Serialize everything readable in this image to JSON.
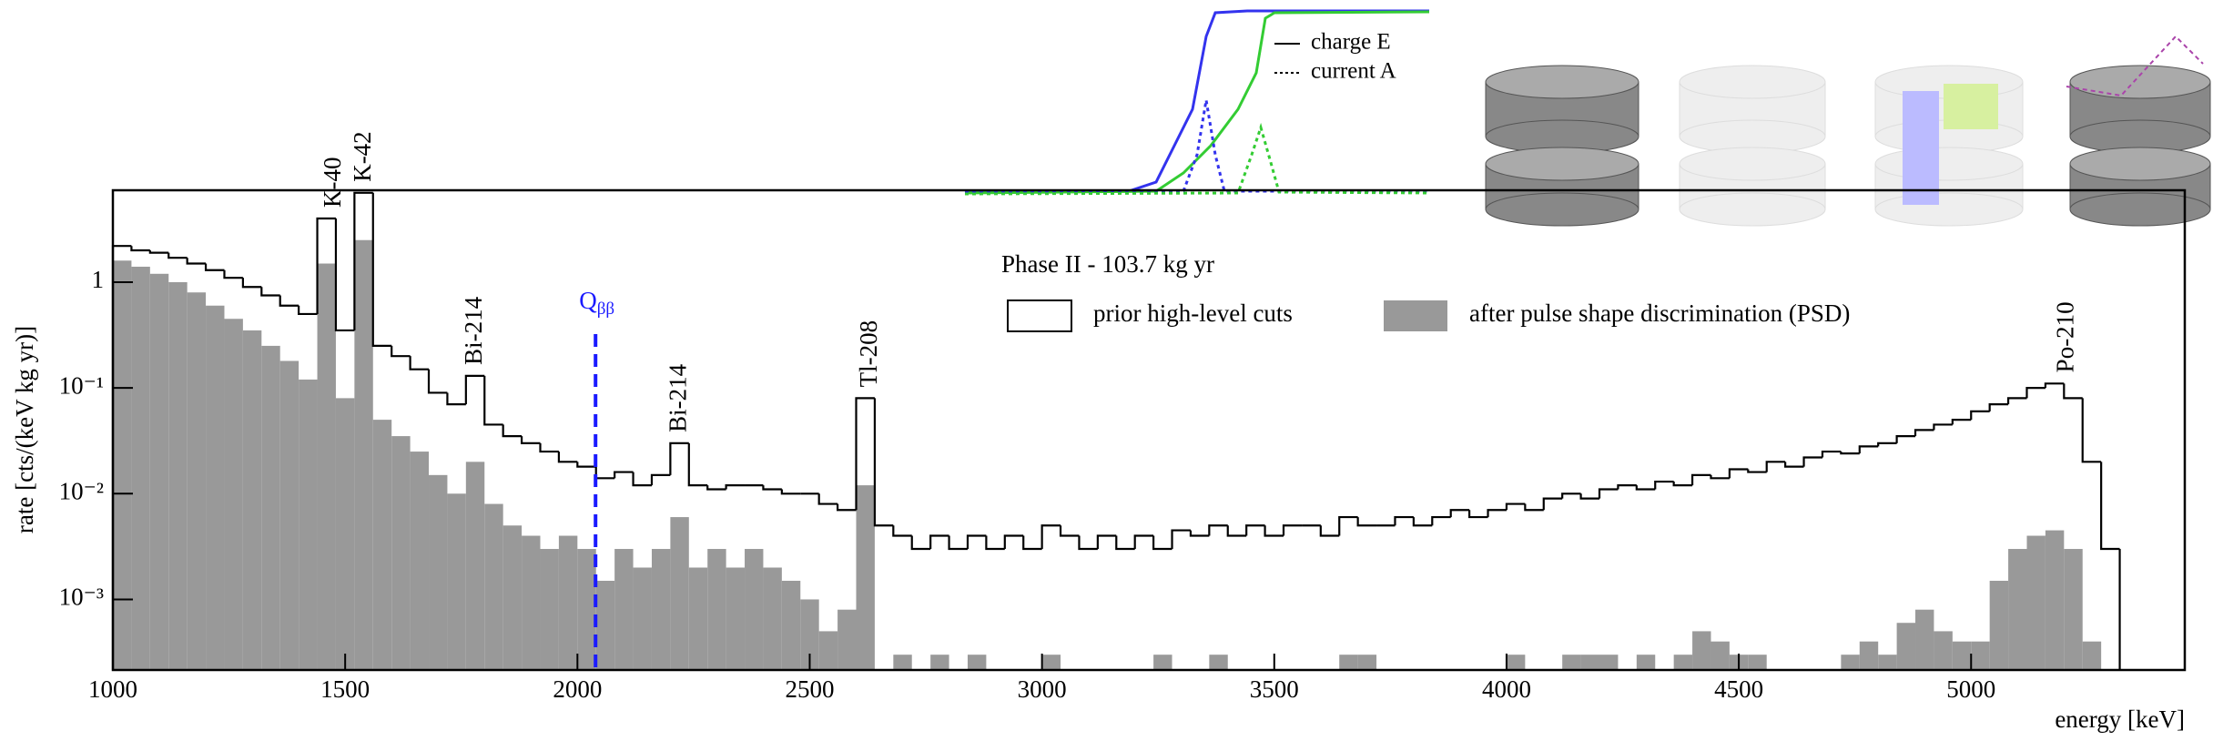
{
  "chart_data": {
    "type": "histogram",
    "xlabel": "energy [keV]",
    "ylabel": "rate [cts/(keV kg yr)]",
    "log_y": true,
    "xlim": [
      1000,
      5460
    ],
    "ylim": [
      0.000215,
      7.4
    ],
    "xticks": [
      1000,
      1500,
      2000,
      2500,
      3000,
      3500,
      4000,
      4500,
      5000
    ],
    "yticks": [
      {
        "value": 0.001,
        "label": "10⁻³"
      },
      {
        "value": 0.01,
        "label": "10⁻²"
      },
      {
        "value": 0.1,
        "label": "10⁻¹"
      },
      {
        "value": 1,
        "label": "1"
      }
    ],
    "legend_title": "Phase II - 103.7 kg yr",
    "bins": [
      1000,
      1040,
      1080,
      1120,
      1160,
      1200,
      1240,
      1280,
      1320,
      1360,
      1400,
      1440,
      1480,
      1520,
      1560,
      1600,
      1640,
      1680,
      1720,
      1760,
      1800,
      1840,
      1880,
      1920,
      1960,
      2000,
      2040,
      2080,
      2120,
      2160,
      2200,
      2240,
      2280,
      2320,
      2360,
      2400,
      2440,
      2480,
      2520,
      2560,
      2600,
      2640,
      2680,
      2720,
      2760,
      2800,
      2840,
      2880,
      2920,
      2960,
      3000,
      3040,
      3080,
      3120,
      3160,
      3200,
      3240,
      3280,
      3320,
      3360,
      3400,
      3440,
      3480,
      3520,
      3560,
      3600,
      3640,
      3680,
      3720,
      3760,
      3800,
      3840,
      3880,
      3920,
      3960,
      4000,
      4040,
      4080,
      4120,
      4160,
      4200,
      4240,
      4280,
      4320,
      4360,
      4400,
      4440,
      4480,
      4520,
      4560,
      4600,
      4640,
      4680,
      4720,
      4760,
      4800,
      4840,
      4880,
      4920,
      4960,
      5000,
      5040,
      5080,
      5120,
      5160,
      5200,
      5240,
      5280,
      5320
    ],
    "series": [
      {
        "name": "after pulse shape discrimination (PSD)",
        "color": "#999999",
        "style": "filled",
        "values": [
          1.6,
          1.4,
          1.2,
          1.0,
          0.8,
          0.6,
          0.45,
          0.35,
          0.25,
          0.18,
          0.12,
          1.5,
          0.08,
          2.5,
          0.05,
          0.035,
          0.025,
          0.015,
          0.01,
          0.02,
          0.008,
          0.005,
          0.004,
          0.003,
          0.004,
          0.003,
          0.0015,
          0.003,
          0.002,
          0.003,
          0.006,
          0.002,
          0.003,
          0.002,
          0.003,
          0.002,
          0.0015,
          0.001,
          0.0005,
          0.0008,
          0.012,
          0,
          0.0003,
          0,
          0.0003,
          0,
          0.0003,
          0,
          0,
          0,
          0.0003,
          0,
          0,
          0,
          0,
          0,
          0.0003,
          0,
          0,
          0.0003,
          0,
          0,
          0,
          0,
          0,
          0,
          0.0003,
          0.0003,
          0,
          0,
          0,
          0,
          0,
          0,
          0,
          0.0003,
          0,
          0,
          0.0003,
          0.0003,
          0.0003,
          0,
          0.0003,
          0,
          0.0003,
          0.0005,
          0.0004,
          0.0003,
          0.0003,
          0,
          0,
          0,
          0,
          0.0003,
          0.0004,
          0.0003,
          0.0006,
          0.0008,
          0.0005,
          0.0004,
          0.0004,
          0.0015,
          0.003,
          0.004,
          0.0045,
          0.003,
          0.0004,
          0
        ]
      },
      {
        "name": "prior high-level cuts",
        "color": "#000000",
        "style": "step",
        "values": [
          2.2,
          2.0,
          1.9,
          1.7,
          1.5,
          1.3,
          1.1,
          0.9,
          0.75,
          0.6,
          0.5,
          4.0,
          0.35,
          7,
          0.25,
          0.2,
          0.15,
          0.09,
          0.07,
          0.13,
          0.045,
          0.035,
          0.03,
          0.025,
          0.02,
          0.018,
          0.014,
          0.016,
          0.012,
          0.015,
          0.03,
          0.012,
          0.011,
          0.012,
          0.012,
          0.011,
          0.01,
          0.01,
          0.008,
          0.007,
          0.08,
          0.005,
          0.004,
          0.003,
          0.004,
          0.003,
          0.004,
          0.003,
          0.004,
          0.003,
          0.005,
          0.004,
          0.003,
          0.004,
          0.003,
          0.004,
          0.003,
          0.0045,
          0.004,
          0.005,
          0.004,
          0.005,
          0.004,
          0.005,
          0.005,
          0.004,
          0.006,
          0.005,
          0.005,
          0.006,
          0.005,
          0.006,
          0.007,
          0.006,
          0.007,
          0.008,
          0.007,
          0.009,
          0.01,
          0.009,
          0.011,
          0.012,
          0.011,
          0.013,
          0.012,
          0.015,
          0.014,
          0.017,
          0.016,
          0.02,
          0.018,
          0.022,
          0.025,
          0.024,
          0.028,
          0.03,
          0.035,
          0.04,
          0.045,
          0.05,
          0.06,
          0.07,
          0.08,
          0.1,
          0.11,
          0.08,
          0.02,
          0.003
        ]
      }
    ],
    "annotations": [
      {
        "text": "K-40",
        "x": 1460
      },
      {
        "text": "K-42",
        "x": 1525
      },
      {
        "text": "Bi-214",
        "x": 1764
      },
      {
        "text": "Bi-214",
        "x": 2204
      },
      {
        "text": "Tl-208",
        "x": 2614
      },
      {
        "text": "Po-210",
        "x": 5190
      }
    ],
    "marker": {
      "text": "Q",
      "sub": "ββ",
      "x": 2039,
      "color": "#1a1aff"
    },
    "inset_legend": [
      "charge E",
      "current A"
    ]
  }
}
